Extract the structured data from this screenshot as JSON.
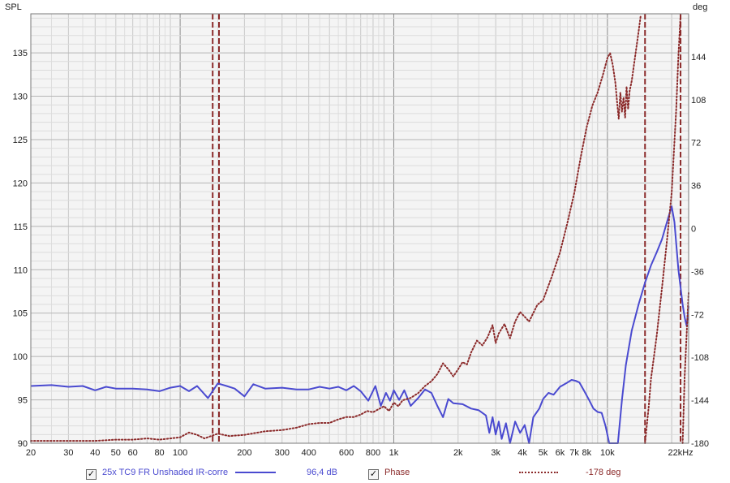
{
  "chart_data": {
    "type": "line",
    "ylabel_left": "SPL",
    "ylabel_right": "deg",
    "x_scale": "log",
    "xlim": [
      20,
      24000
    ],
    "ylim_left": [
      90,
      139.5
    ],
    "ylim_right": [
      -180,
      180
    ],
    "x_ticks": [
      {
        "v": 20,
        "label": "20"
      },
      {
        "v": 30,
        "label": "30"
      },
      {
        "v": 40,
        "label": "40"
      },
      {
        "v": 50,
        "label": "50"
      },
      {
        "v": 60,
        "label": "60"
      },
      {
        "v": 80,
        "label": "80"
      },
      {
        "v": 100,
        "label": "100"
      },
      {
        "v": 200,
        "label": "200"
      },
      {
        "v": 300,
        "label": "300"
      },
      {
        "v": 400,
        "label": "400"
      },
      {
        "v": 600,
        "label": "600"
      },
      {
        "v": 800,
        "label": "800"
      },
      {
        "v": 1000,
        "label": "1k"
      },
      {
        "v": 2000,
        "label": "2k"
      },
      {
        "v": 3000,
        "label": "3k"
      },
      {
        "v": 4000,
        "label": "4k"
      },
      {
        "v": 5000,
        "label": "5k"
      },
      {
        "v": 6000,
        "label": "6k"
      },
      {
        "v": 7000,
        "label": "7k"
      },
      {
        "v": 8000,
        "label": "8k"
      },
      {
        "v": 10000,
        "label": "10k"
      },
      {
        "v": 22000,
        "label": "22kHz"
      }
    ],
    "y_ticks_left": [
      {
        "v": 90,
        "label": "90"
      },
      {
        "v": 95,
        "label": "95"
      },
      {
        "v": 100,
        "label": "100"
      },
      {
        "v": 105,
        "label": "105"
      },
      {
        "v": 110,
        "label": "110"
      },
      {
        "v": 115,
        "label": "115"
      },
      {
        "v": 120,
        "label": "120"
      },
      {
        "v": 125,
        "label": "125"
      },
      {
        "v": 130,
        "label": "130"
      },
      {
        "v": 135,
        "label": "135"
      }
    ],
    "y_ticks_right": [
      {
        "v": -180,
        "label": "-180"
      },
      {
        "v": -144,
        "label": "-144"
      },
      {
        "v": -108,
        "label": "-108"
      },
      {
        "v": -72,
        "label": "-72"
      },
      {
        "v": -36,
        "label": "-36"
      },
      {
        "v": 0,
        "label": "0"
      },
      {
        "v": 36,
        "label": "36"
      },
      {
        "v": 72,
        "label": "72"
      },
      {
        "v": 108,
        "label": "108"
      },
      {
        "v": 144,
        "label": "144"
      }
    ],
    "grid": true,
    "series": [
      {
        "name": "25x TC9 FR Unshaded IR-corre",
        "axis": "left",
        "color": "#4a4ad0",
        "style": "solid",
        "points": [
          [
            20,
            96.6
          ],
          [
            25,
            96.7
          ],
          [
            30,
            96.5
          ],
          [
            35,
            96.6
          ],
          [
            40,
            96.1
          ],
          [
            45,
            96.5
          ],
          [
            50,
            96.3
          ],
          [
            60,
            96.3
          ],
          [
            70,
            96.2
          ],
          [
            80,
            96.0
          ],
          [
            90,
            96.4
          ],
          [
            100,
            96.6
          ],
          [
            110,
            96.0
          ],
          [
            120,
            96.6
          ],
          [
            135,
            95.2
          ],
          [
            150,
            96.9
          ],
          [
            165,
            96.6
          ],
          [
            180,
            96.3
          ],
          [
            200,
            95.4
          ],
          [
            220,
            96.8
          ],
          [
            250,
            96.3
          ],
          [
            300,
            96.4
          ],
          [
            350,
            96.2
          ],
          [
            400,
            96.2
          ],
          [
            450,
            96.5
          ],
          [
            500,
            96.3
          ],
          [
            550,
            96.5
          ],
          [
            600,
            96.1
          ],
          [
            650,
            96.6
          ],
          [
            700,
            96.0
          ],
          [
            760,
            94.9
          ],
          [
            820,
            96.6
          ],
          [
            870,
            94.3
          ],
          [
            920,
            95.8
          ],
          [
            960,
            94.9
          ],
          [
            1000,
            96.1
          ],
          [
            1060,
            95.0
          ],
          [
            1120,
            96.1
          ],
          [
            1200,
            94.3
          ],
          [
            1300,
            95.2
          ],
          [
            1400,
            96.2
          ],
          [
            1500,
            95.8
          ],
          [
            1600,
            94.3
          ],
          [
            1700,
            93.0
          ],
          [
            1800,
            95.1
          ],
          [
            1900,
            94.6
          ],
          [
            2100,
            94.5
          ],
          [
            2300,
            94.0
          ],
          [
            2500,
            93.8
          ],
          [
            2700,
            93.2
          ],
          [
            2800,
            91.2
          ],
          [
            2900,
            93.0
          ],
          [
            3000,
            91.0
          ],
          [
            3100,
            92.5
          ],
          [
            3200,
            90.5
          ],
          [
            3350,
            92.3
          ],
          [
            3500,
            90.0
          ],
          [
            3700,
            92.5
          ],
          [
            3900,
            91.2
          ],
          [
            4100,
            92.1
          ],
          [
            4300,
            90.0
          ],
          [
            4500,
            93.0
          ],
          [
            4800,
            94.0
          ],
          [
            5000,
            95.1
          ],
          [
            5300,
            95.8
          ],
          [
            5600,
            95.6
          ],
          [
            6000,
            96.5
          ],
          [
            6400,
            96.9
          ],
          [
            6800,
            97.3
          ],
          [
            7100,
            97.2
          ],
          [
            7400,
            97.0
          ],
          [
            7800,
            96.0
          ],
          [
            8200,
            95.0
          ],
          [
            8600,
            94.0
          ],
          [
            9000,
            93.6
          ],
          [
            9400,
            93.5
          ],
          [
            9800,
            92.0
          ],
          [
            10200,
            90.0
          ],
          [
            11200,
            90.0
          ],
          [
            11700,
            95.0
          ],
          [
            12200,
            99.0
          ],
          [
            13000,
            103.0
          ],
          [
            14000,
            106.0
          ],
          [
            15000,
            108.5
          ],
          [
            16000,
            110.5
          ],
          [
            17000,
            112.0
          ],
          [
            18000,
            113.5
          ],
          [
            19000,
            115.5
          ],
          [
            20000,
            117.3
          ],
          [
            20600,
            115.5
          ],
          [
            21000,
            113.0
          ],
          [
            21500,
            110.0
          ],
          [
            22000,
            108.0
          ],
          [
            22500,
            106.0
          ],
          [
            23000,
            104.5
          ],
          [
            23500,
            103.5
          ],
          [
            24000,
            105.8
          ]
        ]
      },
      {
        "name": "Phase",
        "axis": "right",
        "color": "#8b2a2a",
        "style": "dotted",
        "points": [
          [
            20,
            -178
          ],
          [
            30,
            -178
          ],
          [
            40,
            -178
          ],
          [
            50,
            -177
          ],
          [
            60,
            -177
          ],
          [
            70,
            -176
          ],
          [
            80,
            -177
          ],
          [
            90,
            -176
          ],
          [
            100,
            -175
          ],
          [
            110,
            -171
          ],
          [
            120,
            -173
          ],
          [
            130,
            -176
          ],
          [
            150,
            -172
          ],
          [
            170,
            -174
          ],
          [
            200,
            -173
          ],
          [
            250,
            -170
          ],
          [
            300,
            -169
          ],
          [
            350,
            -167
          ],
          [
            400,
            -164
          ],
          [
            450,
            -163
          ],
          [
            500,
            -163
          ],
          [
            550,
            -160
          ],
          [
            600,
            -158
          ],
          [
            650,
            -158
          ],
          [
            700,
            -156
          ],
          [
            750,
            -153
          ],
          [
            800,
            -154
          ],
          [
            900,
            -149
          ],
          [
            950,
            -153
          ],
          [
            1000,
            -146
          ],
          [
            1050,
            -149
          ],
          [
            1100,
            -144
          ],
          [
            1200,
            -142
          ],
          [
            1300,
            -138
          ],
          [
            1400,
            -132
          ],
          [
            1500,
            -128
          ],
          [
            1600,
            -122
          ],
          [
            1700,
            -113
          ],
          [
            1800,
            -118
          ],
          [
            1900,
            -124
          ],
          [
            2000,
            -118
          ],
          [
            2100,
            -112
          ],
          [
            2200,
            -114
          ],
          [
            2300,
            -104
          ],
          [
            2450,
            -94
          ],
          [
            2600,
            -98
          ],
          [
            2750,
            -91
          ],
          [
            2900,
            -81
          ],
          [
            3000,
            -96
          ],
          [
            3100,
            -88
          ],
          [
            3300,
            -80
          ],
          [
            3500,
            -92
          ],
          [
            3700,
            -78
          ],
          [
            3900,
            -70
          ],
          [
            4100,
            -74
          ],
          [
            4300,
            -78
          ],
          [
            4700,
            -64
          ],
          [
            5000,
            -60
          ],
          [
            5500,
            -40
          ],
          [
            6000,
            -20
          ],
          [
            6500,
            5
          ],
          [
            7000,
            30
          ],
          [
            7500,
            60
          ],
          [
            8000,
            85
          ],
          [
            8500,
            103
          ],
          [
            9000,
            114
          ],
          [
            9500,
            128
          ],
          [
            10000,
            143
          ],
          [
            10300,
            147
          ],
          [
            10600,
            137
          ],
          [
            10900,
            122
          ],
          [
            11100,
            106
          ],
          [
            11300,
            92
          ],
          [
            11500,
            114
          ],
          [
            11700,
            98
          ],
          [
            11900,
            110
          ],
          [
            12100,
            93
          ],
          [
            12300,
            119
          ],
          [
            12500,
            100
          ],
          [
            12700,
            115
          ],
          [
            13000,
            124
          ],
          [
            13500,
            145
          ],
          [
            14000,
            165
          ],
          [
            14300,
            178
          ],
          [
            15000,
            -180
          ],
          [
            15600,
            -150
          ],
          [
            16000,
            -126
          ],
          [
            17000,
            -90
          ],
          [
            18000,
            -50
          ],
          [
            19000,
            -10
          ],
          [
            20000,
            30
          ],
          [
            21000,
            100
          ],
          [
            21500,
            145
          ],
          [
            22000,
            178
          ],
          [
            22500,
            -180
          ],
          [
            23000,
            -124
          ],
          [
            23500,
            -88
          ],
          [
            24000,
            -54
          ]
        ]
      }
    ],
    "vertical_markers": [
      142,
      152,
      15000,
      22000
    ],
    "legend": [
      {
        "checked": true,
        "name": "25x TC9 FR Unshaded IR-corre",
        "value": "96,4 dB"
      },
      {
        "checked": true,
        "name": "Phase",
        "value": "-178 deg"
      }
    ]
  },
  "ui": {
    "check_mark": "✓",
    "colors": {
      "spl": "#4a4ad0",
      "phase": "#8b2a2a",
      "marker": "#8b2a2a",
      "grid": "#c9c9c9",
      "plot_bg": "#f4f4f4"
    }
  }
}
